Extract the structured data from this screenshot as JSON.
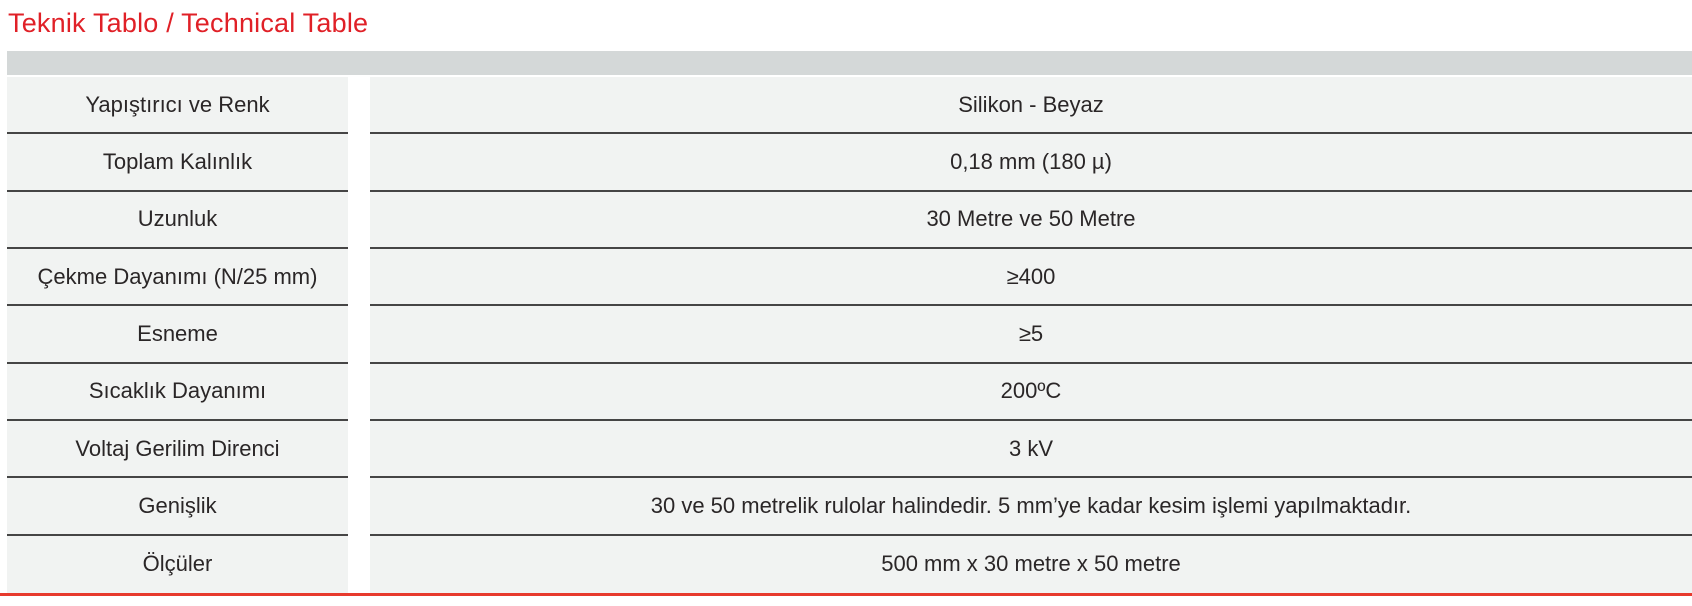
{
  "page": {
    "title": "Teknik Tablo / Technical Table"
  },
  "colors": {
    "title_red": "#e02027",
    "bottom_line_red": "#e73a2d",
    "header_bar_gray": "#d4d8d8",
    "row_background": "#f1f3f2",
    "row_separator": "#454545",
    "text": "#2a2627"
  },
  "table": {
    "rows": [
      {
        "label": "Yapıştırıcı ve Renk",
        "value": "Silikon - Beyaz"
      },
      {
        "label": "Toplam Kalınlık",
        "value": "0,18 mm (180 µ)"
      },
      {
        "label": "Uzunluk",
        "value": "30 Metre ve 50 Metre"
      },
      {
        "label": "Çekme Dayanımı (N/25 mm)",
        "value": "≥400"
      },
      {
        "label": "Esneme",
        "value": "≥5"
      },
      {
        "label": "Sıcaklık Dayanımı",
        "value": "200ºC"
      },
      {
        "label": "Voltaj Gerilim Direnci",
        "value": "3 kV"
      },
      {
        "label": "Genişlik",
        "value": "30 ve 50 metrelik rulolar halindedir. 5 mm’ye kadar kesim işlemi yapılmaktadır."
      },
      {
        "label": "Ölçüler",
        "value": "500 mm x 30 metre x 50 metre"
      }
    ]
  }
}
